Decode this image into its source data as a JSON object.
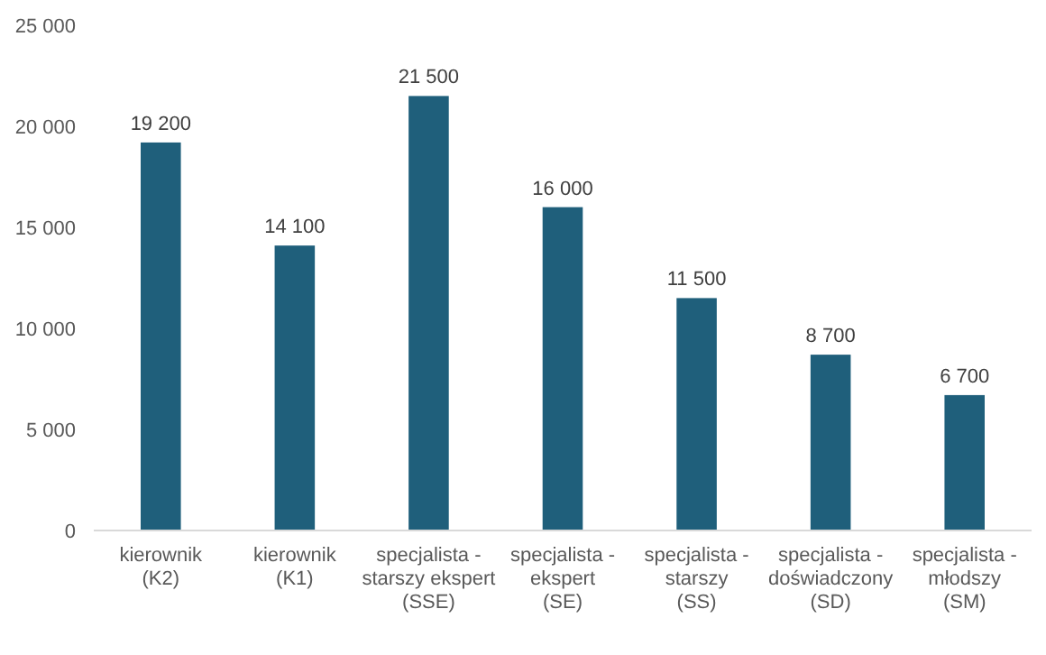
{
  "chart_data": {
    "type": "bar",
    "categories": [
      "kierownik\n(K2)",
      "kierownik\n(K1)",
      "specjalista -\nstarszy ekspert\n(SSE)",
      "specjalista -\nekspert\n(SE)",
      "specjalista -\nstarszy\n(SS)",
      "specjalista -\ndoświadczony\n(SD)",
      "specjalista -\nmłodszy\n(SM)"
    ],
    "values": [
      19200,
      14100,
      21500,
      16000,
      11500,
      8700,
      6700
    ],
    "value_labels": [
      "19 200",
      "14 100",
      "21 500",
      "16 000",
      "11 500",
      "8 700",
      "6 700"
    ],
    "color": "#1f5f7b",
    "ylim": [
      0,
      25000
    ],
    "yticks": [
      {
        "value": 0,
        "label": "0"
      },
      {
        "value": 5000,
        "label": "5 000"
      },
      {
        "value": 10000,
        "label": "10 000"
      },
      {
        "value": 15000,
        "label": "15 000"
      },
      {
        "value": 20000,
        "label": "20 000"
      },
      {
        "value": 25000,
        "label": "25 000"
      }
    ],
    "grid": false
  }
}
